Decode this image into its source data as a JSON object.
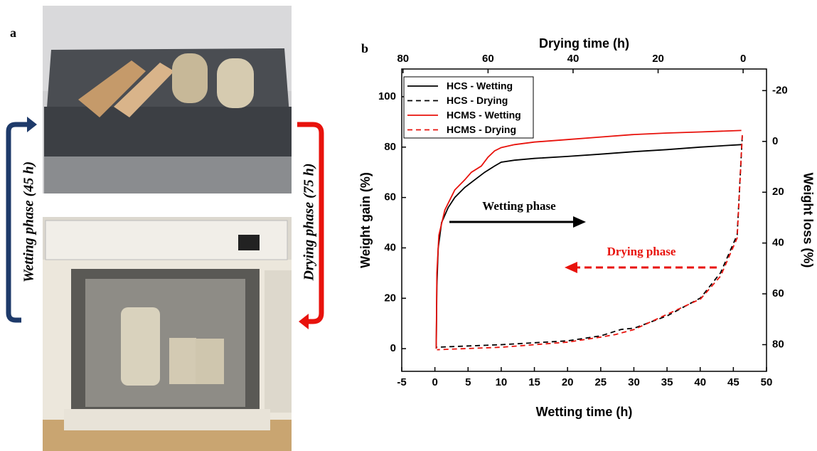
{
  "panel_a": {
    "label": "a",
    "wetting_label": "Wetting phase (45 h)",
    "drying_label": "Drying phase (75 h)"
  },
  "chart_data": {
    "type": "line",
    "panel_label": "b",
    "xlabel": "Wetting time (h)",
    "ylabel": "Weight gain (%)",
    "x2label": "Drying time (h)",
    "y2label": "Weight loss (%)",
    "xlim": [
      -5,
      50
    ],
    "xticks": [
      -5,
      0,
      5,
      10,
      15,
      20,
      25,
      30,
      35,
      40,
      45,
      50
    ],
    "ylim": [
      -9,
      111
    ],
    "yticks": [
      0,
      20,
      40,
      60,
      80,
      100
    ],
    "x2lim": [
      -5.5,
      80.3
    ],
    "x2ticks": [
      80,
      60,
      40,
      20,
      0
    ],
    "x2_inverted": true,
    "y2lim": [
      -28.5,
      90.5
    ],
    "y2ticks": [
      -20,
      0,
      20,
      40,
      60,
      80
    ],
    "y2_inverted": true,
    "series": [
      {
        "name": "HCS - Wetting",
        "color": "#000000",
        "dash": "solid",
        "x": [
          0.2,
          0.3,
          0.5,
          1,
          2,
          3,
          4.5,
          6,
          7.5,
          9,
          10,
          12,
          15,
          20,
          25,
          30,
          35,
          40,
          46.2
        ],
        "values": [
          0,
          25,
          40,
          50,
          56,
          60,
          64,
          67,
          70,
          72.5,
          74,
          74.8,
          75.5,
          76.3,
          77.2,
          78.2,
          79,
          80,
          81
        ]
      },
      {
        "name": "HCS - Drying",
        "color": "#000000",
        "dash": "dashed",
        "axis": "y2",
        "xaxis": "x2",
        "x": [
          0.2,
          1.4,
          5.3,
          10,
          17.8,
          25.6,
          28.7,
          33.4,
          41.2,
          56.8,
          72
        ],
        "values": [
          -2,
          36.8,
          51.7,
          61.6,
          68.6,
          73.5,
          74,
          76.5,
          78.5,
          80,
          81
        ]
      },
      {
        "name": "HCMS - Wetting",
        "color": "#e8120c",
        "dash": "solid",
        "x": [
          0.2,
          0.3,
          0.6,
          1.5,
          3,
          4.5,
          5.5,
          7,
          8,
          9,
          10,
          12,
          15,
          20,
          25,
          30,
          35,
          40,
          46.2
        ],
        "values": [
          0,
          30,
          45,
          55,
          63,
          67,
          70,
          72.5,
          76,
          78.5,
          79.8,
          81,
          82,
          83,
          84,
          85,
          85.6,
          86,
          86.6
        ]
      },
      {
        "name": "HCMS - Drying",
        "color": "#e8120c",
        "dash": "dashed",
        "axis": "y2",
        "xaxis": "x2",
        "x": [
          0.2,
          1.4,
          5.3,
          10,
          17.8,
          25.6,
          30,
          33.4,
          41.2,
          56.8,
          72
        ],
        "values": [
          -2.5,
          38,
          53,
          62,
          68,
          74,
          76,
          77,
          79,
          81,
          82
        ]
      }
    ],
    "annotations": [
      {
        "text": "Wetting phase",
        "color": "#000000"
      },
      {
        "text": "Drying phase",
        "color": "#e8120c"
      }
    ]
  }
}
